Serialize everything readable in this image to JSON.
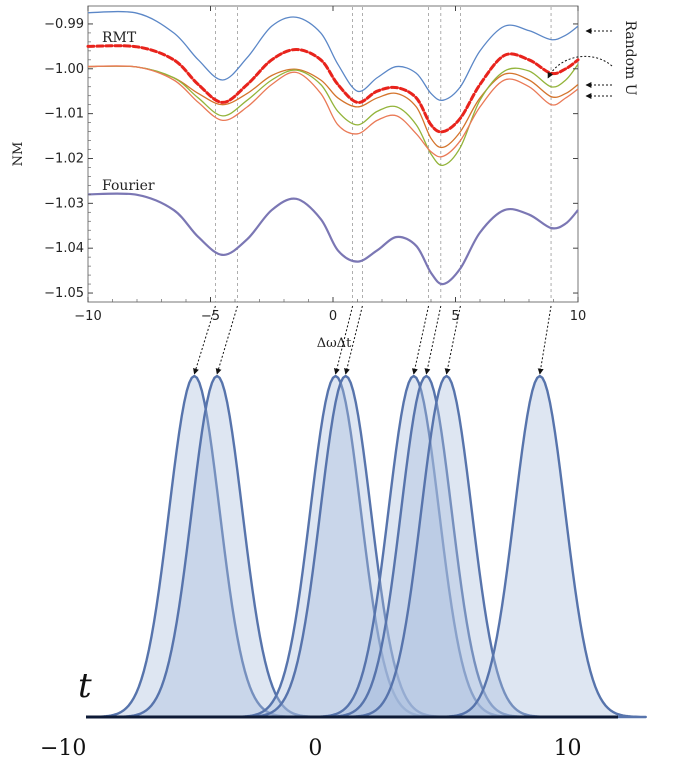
{
  "chart_data": [
    {
      "type": "line",
      "ylabel": "NM",
      "xlabel": "ΔωΔt",
      "xlim": [
        -10,
        10
      ],
      "ylim": [
        -1.052,
        -0.986
      ],
      "x_ticks": [
        -10,
        -5,
        0,
        5,
        10
      ],
      "x_tick_labels": [
        "−10",
        "−5",
        "0",
        "5",
        "10"
      ],
      "y_ticks": [
        -0.99,
        -1.0,
        -1.01,
        -1.02,
        -1.03,
        -1.04,
        -1.05
      ],
      "y_tick_labels": [
        "−0.99",
        "−1.00",
        "−1.01",
        "−1.02",
        "−1.03",
        "−1.04",
        "−1.05"
      ],
      "grid": false,
      "labels": {
        "rmt": "RMT",
        "fourier": "Fourier",
        "random_u": "Random U"
      },
      "colors": {
        "blue": "#5b87c7",
        "rmt": "#e8231c",
        "orange": "#d4742c",
        "green": "#93b43a",
        "salmon": "#ea7a57",
        "fourier": "#7b77b4",
        "guide": "#9a9a9a"
      },
      "dip_positions": [
        -4.8,
        -3.9,
        0.8,
        1.2,
        3.9,
        4.4,
        5.2,
        8.9
      ],
      "series": [
        {
          "role": "random-u",
          "color": "blue",
          "x": [
            -10,
            -8,
            -6.5,
            -5.5,
            -4.5,
            -3.5,
            -2.5,
            -1.5,
            -0.5,
            0.2,
            1,
            1.8,
            2.6,
            3.4,
            4,
            4.5,
            5.2,
            6,
            7,
            8,
            8.9,
            9.5,
            10
          ],
          "y": [
            -0.9875,
            -0.9876,
            -0.992,
            -0.998,
            -1.0025,
            -0.9975,
            -0.9905,
            -0.9885,
            -0.992,
            -0.999,
            -1.005,
            -1.002,
            -0.9995,
            -1.001,
            -1.0055,
            -1.007,
            -1.004,
            -0.996,
            -0.9905,
            -0.9915,
            -0.9935,
            -0.9925,
            -0.9905
          ]
        },
        {
          "role": "random-u",
          "color": "orange",
          "x": [
            -10,
            -8,
            -6.5,
            -5.5,
            -4.5,
            -3.5,
            -2.5,
            -1.5,
            -0.5,
            0.2,
            1,
            1.8,
            2.6,
            3.4,
            4,
            4.5,
            5.2,
            6,
            7,
            8,
            8.9,
            9.5,
            10
          ],
          "y": [
            -0.9995,
            -0.9996,
            -1.002,
            -1.0055,
            -1.008,
            -1.0055,
            -1.0015,
            -1.0001,
            -1.0025,
            -1.0065,
            -1.0085,
            -1.0065,
            -1.0055,
            -1.0085,
            -1.0155,
            -1.0175,
            -1.014,
            -1.0065,
            -1.0012,
            -1.0025,
            -1.0062,
            -1.0055,
            -1.0035
          ]
        },
        {
          "role": "random-u",
          "color": "green",
          "x": [
            -10,
            -8,
            -6.5,
            -5.5,
            -4.5,
            -3.5,
            -2.5,
            -1.5,
            -0.5,
            0.2,
            1,
            1.8,
            2.6,
            3.4,
            4,
            4.5,
            5.2,
            6,
            7,
            8,
            8.9,
            9.5,
            10
          ],
          "y": [
            -0.9995,
            -0.9996,
            -1.002,
            -1.0065,
            -1.0105,
            -1.007,
            -1.0025,
            -1.0003,
            -1.0035,
            -1.0095,
            -1.0125,
            -1.0095,
            -1.0085,
            -1.0125,
            -1.019,
            -1.0215,
            -1.0175,
            -1.007,
            -1.0005,
            -1.0005,
            -1.004,
            -1.0025,
            -0.999
          ]
        },
        {
          "role": "random-u",
          "color": "salmon",
          "x": [
            -10,
            -8,
            -6.5,
            -5.5,
            -4.5,
            -3.5,
            -2.5,
            -1.5,
            -0.5,
            0.2,
            1,
            1.8,
            2.6,
            3.4,
            4,
            4.5,
            5.2,
            6,
            7,
            8,
            8.9,
            9.5,
            10
          ],
          "y": [
            -0.9995,
            -0.9996,
            -1.0025,
            -1.0075,
            -1.0115,
            -1.0085,
            -1.0035,
            -1.0008,
            -1.0055,
            -1.0125,
            -1.0145,
            -1.0115,
            -1.0105,
            -1.0145,
            -1.0185,
            -1.0195,
            -1.016,
            -1.0085,
            -1.0025,
            -1.004,
            -1.008,
            -1.0065,
            -1.0045
          ]
        },
        {
          "role": "rmt",
          "color": "rmt",
          "dashed": true,
          "x": [
            -10,
            -8,
            -6.5,
            -5.5,
            -4.5,
            -3.5,
            -2.5,
            -1.5,
            -0.5,
            0.2,
            1,
            1.8,
            2.6,
            3.4,
            4,
            4.5,
            5.2,
            6,
            7,
            8,
            8.9,
            9.5,
            10
          ],
          "y": [
            -0.995,
            -0.9951,
            -0.998,
            -1.0035,
            -1.0075,
            -1.0035,
            -0.998,
            -0.9957,
            -0.998,
            -1.0035,
            -1.0075,
            -1.005,
            -1.0042,
            -1.0065,
            -1.0125,
            -1.014,
            -1.011,
            -1.0035,
            -0.997,
            -0.998,
            -1.001,
            -1.0,
            -0.998
          ]
        },
        {
          "role": "fourier",
          "color": "fourier",
          "thick": true,
          "x": [
            -10,
            -8,
            -6.5,
            -5.5,
            -4.5,
            -3.5,
            -2.5,
            -1.5,
            -0.5,
            0.2,
            1,
            1.8,
            2.6,
            3.4,
            4,
            4.5,
            5.2,
            6,
            7,
            8,
            8.9,
            9.5,
            10
          ],
          "y": [
            -1.028,
            -1.0281,
            -1.0315,
            -1.0375,
            -1.0415,
            -1.038,
            -1.0315,
            -1.029,
            -1.0335,
            -1.0405,
            -1.043,
            -1.0405,
            -1.0375,
            -1.0395,
            -1.0455,
            -1.048,
            -1.0445,
            -1.0365,
            -1.0315,
            -1.0325,
            -1.0355,
            -1.0345,
            -1.0315
          ]
        }
      ]
    },
    {
      "type": "area",
      "ylabel": "t",
      "xlim": [
        -11,
        12
      ],
      "x_ticks": [
        -10,
        0,
        10
      ],
      "x_tick_labels": [
        "−10",
        "0",
        "10"
      ],
      "series": [
        {
          "center": -4.8,
          "height": 1.0
        },
        {
          "center": -3.9,
          "height": 1.0
        },
        {
          "center": 0.8,
          "height": 1.0
        },
        {
          "center": 1.2,
          "height": 1.0
        },
        {
          "center": 3.9,
          "height": 1.0
        },
        {
          "center": 4.4,
          "height": 1.0
        },
        {
          "center": 5.2,
          "height": 1.0
        },
        {
          "center": 8.9,
          "height": 1.0
        }
      ],
      "sigma": 1.0,
      "fill_color": "#a9bcdc",
      "stroke_color": "#5774ac",
      "axis_color": "#0d1a36"
    }
  ]
}
